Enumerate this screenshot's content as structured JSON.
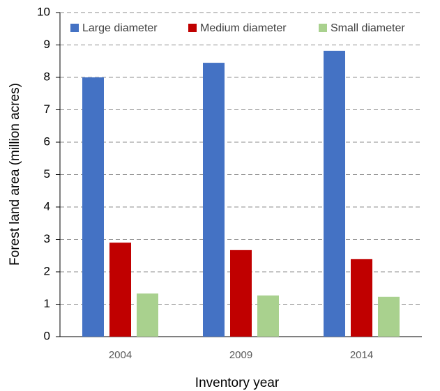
{
  "chart_data": {
    "type": "bar",
    "y_label": "Forest land area  (million acres)",
    "x_label": "Inventory  year",
    "categories": [
      "2004",
      "2009",
      "2014"
    ],
    "series": [
      {
        "name": "Large diameter",
        "color": "#4472c4",
        "values": [
          8.0,
          8.45,
          8.82
        ]
      },
      {
        "name": "Medium diameter",
        "color": "#c00000",
        "values": [
          2.9,
          2.67,
          2.39
        ]
      },
      {
        "name": "Small diameter",
        "color": "#a9d18e",
        "values": [
          1.33,
          1.27,
          1.23
        ]
      }
    ],
    "ylim": [
      0,
      10
    ],
    "yticks": [
      0,
      1,
      2,
      3,
      4,
      5,
      6,
      7,
      8,
      9,
      10
    ],
    "grid": true,
    "legend": "top"
  }
}
